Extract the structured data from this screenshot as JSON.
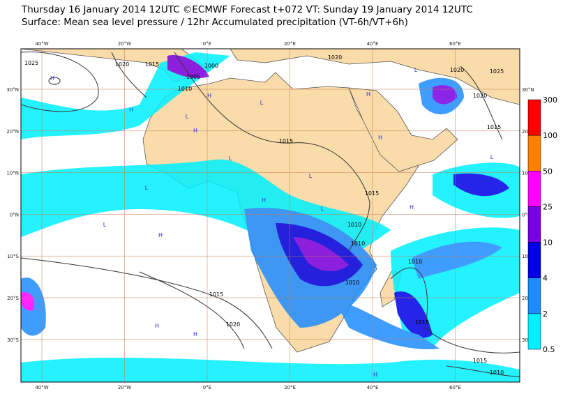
{
  "header": {
    "line1": "Thursday 16 January 2014 12UTC ©ECMWF Forecast t+072 VT: Sunday 19 January 2014 12UTC",
    "line2": "Surface: Mean sea level pressure / 12hr Accumulated precipitation (VT-6h/VT+6h)"
  },
  "map": {
    "lon_labels": [
      "40°W",
      "20°W",
      "0°E",
      "20°E",
      "40°E",
      "60°E"
    ],
    "lat_labels": [
      "30°N",
      "20°N",
      "10°N",
      "0°N",
      "10°S",
      "20°S",
      "30°S"
    ],
    "isobar_labels": [
      "1025",
      "1020",
      "1015",
      "1005",
      "1000",
      "1010",
      "1020",
      "1020",
      "1025",
      "1020",
      "1015",
      "1015",
      "1015",
      "1010",
      "1010",
      "1010",
      "1010",
      "1015",
      "1020",
      "1015",
      "1015",
      "1010"
    ],
    "pressure_centers": [
      "H",
      "H",
      "L",
      "L",
      "L",
      "H",
      "L",
      "H",
      "H",
      "L",
      "H",
      "L",
      "H",
      "H",
      "L",
      "H",
      "L",
      "H",
      "H",
      "L",
      "H"
    ]
  },
  "colorbar": {
    "levels": [
      "300",
      "100",
      "50",
      "25",
      "10",
      "4",
      "2",
      "0.5"
    ],
    "colors": [
      "#ff0000",
      "#ff7f00",
      "#ff00ff",
      "#7a00e6",
      "#0000e6",
      "#1e8cff",
      "#00f0ff"
    ]
  }
}
